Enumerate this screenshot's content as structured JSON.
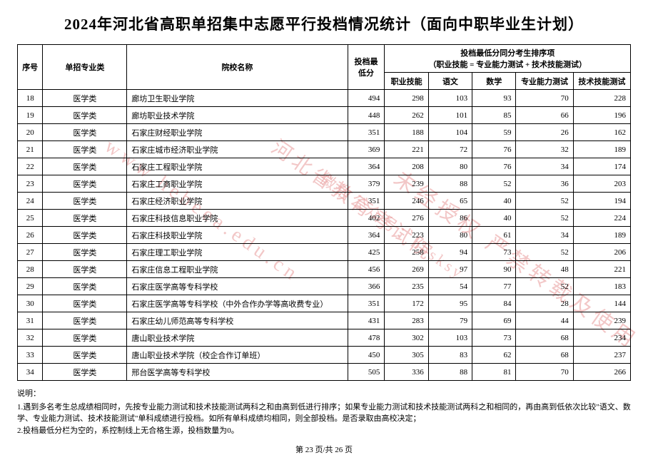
{
  "title": "2024年河北省高职单招集中志愿平行投档情况统计（面向中职毕业生计划）",
  "columns": {
    "seq": "序号",
    "major": "单招专业类",
    "school": "院校名称",
    "min": "投档最低分",
    "group_header": "投档最低分同分考生排序项",
    "group_sub": "（职业技能 = 专业能力测试 + 技术技能测试）",
    "c1": "职业技能",
    "c2": "语文",
    "c3": "数学",
    "c4": "专业能力测试",
    "c5": "技术技能测试"
  },
  "rows": [
    {
      "seq": "18",
      "major": "医学类",
      "school": "廊坊卫生职业学院",
      "min": "494",
      "c1": "298",
      "c2": "103",
      "c3": "93",
      "c4": "70",
      "c5": "228"
    },
    {
      "seq": "19",
      "major": "医学类",
      "school": "廊坊职业技术学院",
      "min": "448",
      "c1": "262",
      "c2": "101",
      "c3": "85",
      "c4": "66",
      "c5": "196"
    },
    {
      "seq": "20",
      "major": "医学类",
      "school": "石家庄财经职业学院",
      "min": "351",
      "c1": "188",
      "c2": "104",
      "c3": "59",
      "c4": "26",
      "c5": "162"
    },
    {
      "seq": "21",
      "major": "医学类",
      "school": "石家庄城市经济职业学院",
      "min": "369",
      "c1": "221",
      "c2": "72",
      "c3": "76",
      "c4": "32",
      "c5": "189"
    },
    {
      "seq": "22",
      "major": "医学类",
      "school": "石家庄工程职业学院",
      "min": "364",
      "c1": "208",
      "c2": "80",
      "c3": "76",
      "c4": "34",
      "c5": "174"
    },
    {
      "seq": "23",
      "major": "医学类",
      "school": "石家庄工商职业学院",
      "min": "379",
      "c1": "239",
      "c2": "88",
      "c3": "52",
      "c4": "36",
      "c5": "203"
    },
    {
      "seq": "24",
      "major": "医学类",
      "school": "石家庄经济职业学院",
      "min": "351",
      "c1": "246",
      "c2": "65",
      "c3": "40",
      "c4": "52",
      "c5": "194"
    },
    {
      "seq": "25",
      "major": "医学类",
      "school": "石家庄科技信息职业学院",
      "min": "402",
      "c1": "276",
      "c2": "86",
      "c3": "40",
      "c4": "52",
      "c5": "224"
    },
    {
      "seq": "26",
      "major": "医学类",
      "school": "石家庄科技职业学院",
      "min": "364",
      "c1": "223",
      "c2": "80",
      "c3": "61",
      "c4": "34",
      "c5": "189"
    },
    {
      "seq": "27",
      "major": "医学类",
      "school": "石家庄理工职业学院",
      "min": "425",
      "c1": "258",
      "c2": "94",
      "c3": "73",
      "c4": "52",
      "c5": "206"
    },
    {
      "seq": "28",
      "major": "医学类",
      "school": "石家庄信息工程职业学院",
      "min": "456",
      "c1": "269",
      "c2": "97",
      "c3": "90",
      "c4": "48",
      "c5": "221"
    },
    {
      "seq": "29",
      "major": "医学类",
      "school": "石家庄医学高等专科学校",
      "min": "366",
      "c1": "235",
      "c2": "54",
      "c3": "77",
      "c4": "52",
      "c5": "183"
    },
    {
      "seq": "30",
      "major": "医学类",
      "school": "石家庄医学高等专科学校（中外合作办学等高收费专业）",
      "min": "351",
      "c1": "172",
      "c2": "95",
      "c3": "84",
      "c4": "28",
      "c5": "144"
    },
    {
      "seq": "31",
      "major": "医学类",
      "school": "石家庄幼儿师范高等专科学校",
      "min": "431",
      "c1": "283",
      "c2": "79",
      "c3": "69",
      "c4": "44",
      "c5": "239"
    },
    {
      "seq": "32",
      "major": "医学类",
      "school": "唐山职业技术学院",
      "min": "478",
      "c1": "302",
      "c2": "103",
      "c3": "73",
      "c4": "68",
      "c5": "234"
    },
    {
      "seq": "33",
      "major": "医学类",
      "school": "唐山职业技术学院（校企合作订单班）",
      "min": "450",
      "c1": "305",
      "c2": "83",
      "c3": "62",
      "c4": "68",
      "c5": "237"
    },
    {
      "seq": "34",
      "major": "医学类",
      "school": "邢台医学高等专科学校",
      "min": "505",
      "c1": "336",
      "c2": "88",
      "c3": "81",
      "c4": "70",
      "c5": "266"
    }
  ],
  "notes": {
    "heading": "说明：",
    "n1": "1.遇到多名考生总成绩相同时，先按专业能力测试和技术技能测试两科之和由高到低进行排序；如果专业能力测试和技术技能测试两科之和相同的，再由高到低依次比较\"语文、数学、专业能力测试、技术技能测试\"单科成绩进行投档。如所有单科成绩均相同，则全部投档。是否录取由高校决定；",
    "n2": "2.投档最低分栏为空的，系控制线上无合格生源，投档数量为0。"
  },
  "pager": "第 23 页/共 26 页",
  "watermarks": {
    "w1": "www.hebeea.edu.cn",
    "w2": "河北省教育考试院",
    "w3": "微信公众号：hbsksy",
    "w4": "未经授权 严禁转载及使用"
  }
}
